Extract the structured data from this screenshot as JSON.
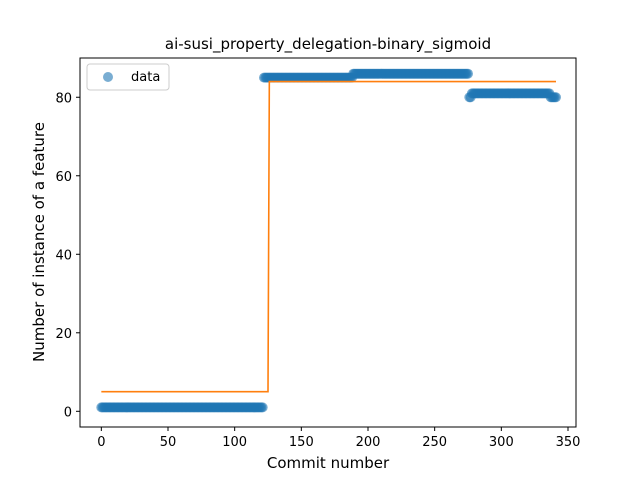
{
  "chart_data": {
    "type": "scatter",
    "title": "ai-susi_property_delegation-binary_sigmoid",
    "xlabel": "Commit number",
    "ylabel": "Number of instance of a feature",
    "xlim": [
      -16,
      356
    ],
    "ylim": [
      -4,
      90
    ],
    "xticks": [
      0,
      50,
      100,
      150,
      200,
      250,
      300,
      350
    ],
    "yticks": [
      0,
      20,
      40,
      60,
      80
    ],
    "grid": false,
    "legend": {
      "position": "top-left",
      "entries": [
        "data"
      ]
    },
    "colors": {
      "points": "#1f77b4",
      "fit": "#ff7f0e"
    },
    "series": [
      {
        "name": "data",
        "kind": "points",
        "segments": [
          {
            "x_start": 0,
            "x_end": 121,
            "y": 1
          },
          {
            "x_start": 122,
            "x_end": 188,
            "y": 85
          },
          {
            "x_start": 189,
            "x_end": 275,
            "y": 86
          },
          {
            "x_start": 276,
            "x_end": 277,
            "y": 80
          },
          {
            "x_start": 278,
            "x_end": 336,
            "y": 81
          },
          {
            "x_start": 337,
            "x_end": 341,
            "y": 80
          }
        ]
      },
      {
        "kind": "line",
        "points": [
          [
            0,
            5
          ],
          [
            125,
            5
          ],
          [
            126,
            84
          ],
          [
            341,
            84
          ]
        ]
      }
    ]
  }
}
